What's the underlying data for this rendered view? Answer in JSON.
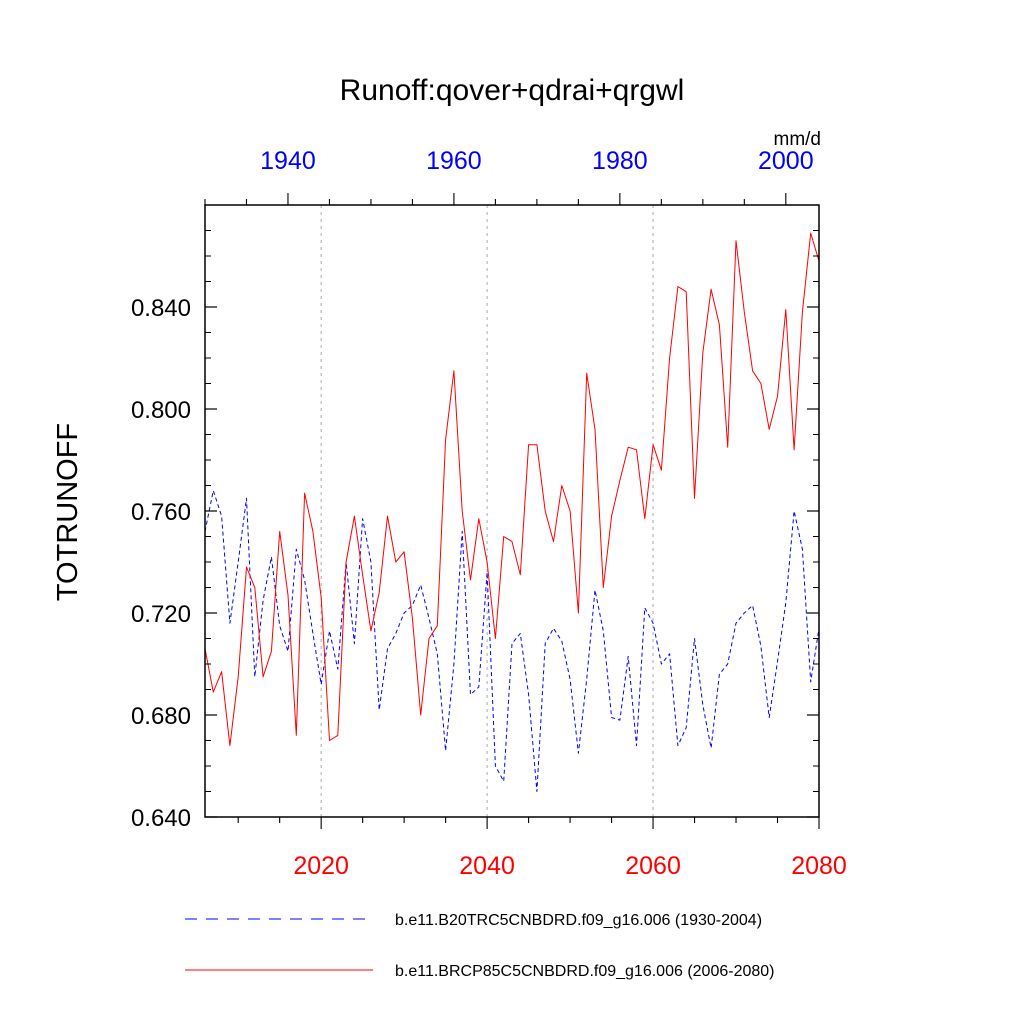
{
  "chart_data": {
    "type": "line",
    "title": "Runoff:qover+qdrai+qrgwl",
    "ylabel": "TOTRUNOFF",
    "units": "mm/d",
    "ylim": [
      0.64,
      0.88
    ],
    "yticks": [
      "0.640",
      "0.680",
      "0.720",
      "0.760",
      "0.800",
      "0.840"
    ],
    "x_bottom": {
      "lim": [
        2006,
        2080
      ],
      "ticks": [
        "2020",
        "2040",
        "2060",
        "2080"
      ],
      "color": "#ff0000"
    },
    "x_top": {
      "lim": [
        1930,
        2004
      ],
      "ticks": [
        "1940",
        "1960",
        "1980",
        "2000"
      ],
      "color": "#0000ff"
    },
    "grid": "vertical dashed at bottom-axis major ticks",
    "legend_position": "bottom",
    "series": [
      {
        "name": "b.e11.B20TRC5CNBDRD.f09_g16.006 (1930-2004)",
        "axis": "top",
        "color": "#0000ff",
        "style": "dashed",
        "x": [
          1930,
          1931,
          1932,
          1933,
          1934,
          1935,
          1936,
          1937,
          1938,
          1939,
          1940,
          1941,
          1942,
          1943,
          1944,
          1945,
          1946,
          1947,
          1948,
          1949,
          1950,
          1951,
          1952,
          1953,
          1954,
          1955,
          1956,
          1957,
          1958,
          1959,
          1960,
          1961,
          1962,
          1963,
          1964,
          1965,
          1966,
          1967,
          1968,
          1969,
          1970,
          1971,
          1972,
          1973,
          1974,
          1975,
          1976,
          1977,
          1978,
          1979,
          1980,
          1981,
          1982,
          1983,
          1984,
          1985,
          1986,
          1987,
          1988,
          1989,
          1990,
          1991,
          1992,
          1993,
          1994,
          1995,
          1996,
          1997,
          1998,
          1999,
          2000,
          2001,
          2002,
          2003,
          2004
        ],
        "values": [
          0.752,
          0.768,
          0.758,
          0.716,
          0.74,
          0.765,
          0.695,
          0.725,
          0.742,
          0.715,
          0.705,
          0.745,
          0.733,
          0.712,
          0.692,
          0.713,
          0.698,
          0.74,
          0.708,
          0.757,
          0.74,
          0.682,
          0.706,
          0.712,
          0.72,
          0.723,
          0.731,
          0.718,
          0.704,
          0.666,
          0.7,
          0.752,
          0.688,
          0.691,
          0.736,
          0.66,
          0.654,
          0.708,
          0.712,
          0.688,
          0.65,
          0.708,
          0.714,
          0.709,
          0.694,
          0.665,
          0.694,
          0.729,
          0.713,
          0.679,
          0.678,
          0.703,
          0.668,
          0.722,
          0.716,
          0.7,
          0.704,
          0.668,
          0.675,
          0.71,
          0.684,
          0.667,
          0.696,
          0.7,
          0.716,
          0.72,
          0.723,
          0.707,
          0.679,
          0.701,
          0.724,
          0.76,
          0.745,
          0.693,
          0.714
        ]
      },
      {
        "name": "b.e11.BRCP85C5CNBDRD.f09_g16.006 (2006-2080)",
        "axis": "bottom",
        "color": "#ff0000",
        "style": "solid",
        "x": [
          2006,
          2007,
          2008,
          2009,
          2010,
          2011,
          2012,
          2013,
          2014,
          2015,
          2016,
          2017,
          2018,
          2019,
          2020,
          2021,
          2022,
          2023,
          2024,
          2025,
          2026,
          2027,
          2028,
          2029,
          2030,
          2031,
          2032,
          2033,
          2034,
          2035,
          2036,
          2037,
          2038,
          2039,
          2040,
          2041,
          2042,
          2043,
          2044,
          2045,
          2046,
          2047,
          2048,
          2049,
          2050,
          2051,
          2052,
          2053,
          2054,
          2055,
          2056,
          2057,
          2058,
          2059,
          2060,
          2061,
          2062,
          2063,
          2064,
          2065,
          2066,
          2067,
          2068,
          2069,
          2070,
          2071,
          2072,
          2073,
          2074,
          2075,
          2076,
          2077,
          2078,
          2079,
          2080
        ],
        "values": [
          0.706,
          0.689,
          0.697,
          0.668,
          0.695,
          0.738,
          0.73,
          0.695,
          0.705,
          0.752,
          0.727,
          0.672,
          0.767,
          0.752,
          0.726,
          0.67,
          0.672,
          0.74,
          0.758,
          0.735,
          0.713,
          0.728,
          0.758,
          0.74,
          0.744,
          0.718,
          0.68,
          0.71,
          0.715,
          0.788,
          0.815,
          0.76,
          0.733,
          0.757,
          0.74,
          0.71,
          0.75,
          0.748,
          0.735,
          0.786,
          0.786,
          0.76,
          0.748,
          0.77,
          0.76,
          0.72,
          0.814,
          0.792,
          0.73,
          0.758,
          0.772,
          0.785,
          0.784,
          0.757,
          0.786,
          0.776,
          0.82,
          0.848,
          0.846,
          0.765,
          0.822,
          0.847,
          0.833,
          0.785,
          0.866,
          0.838,
          0.815,
          0.81,
          0.792,
          0.805,
          0.839,
          0.784,
          0.838,
          0.869,
          0.858
        ]
      }
    ]
  }
}
